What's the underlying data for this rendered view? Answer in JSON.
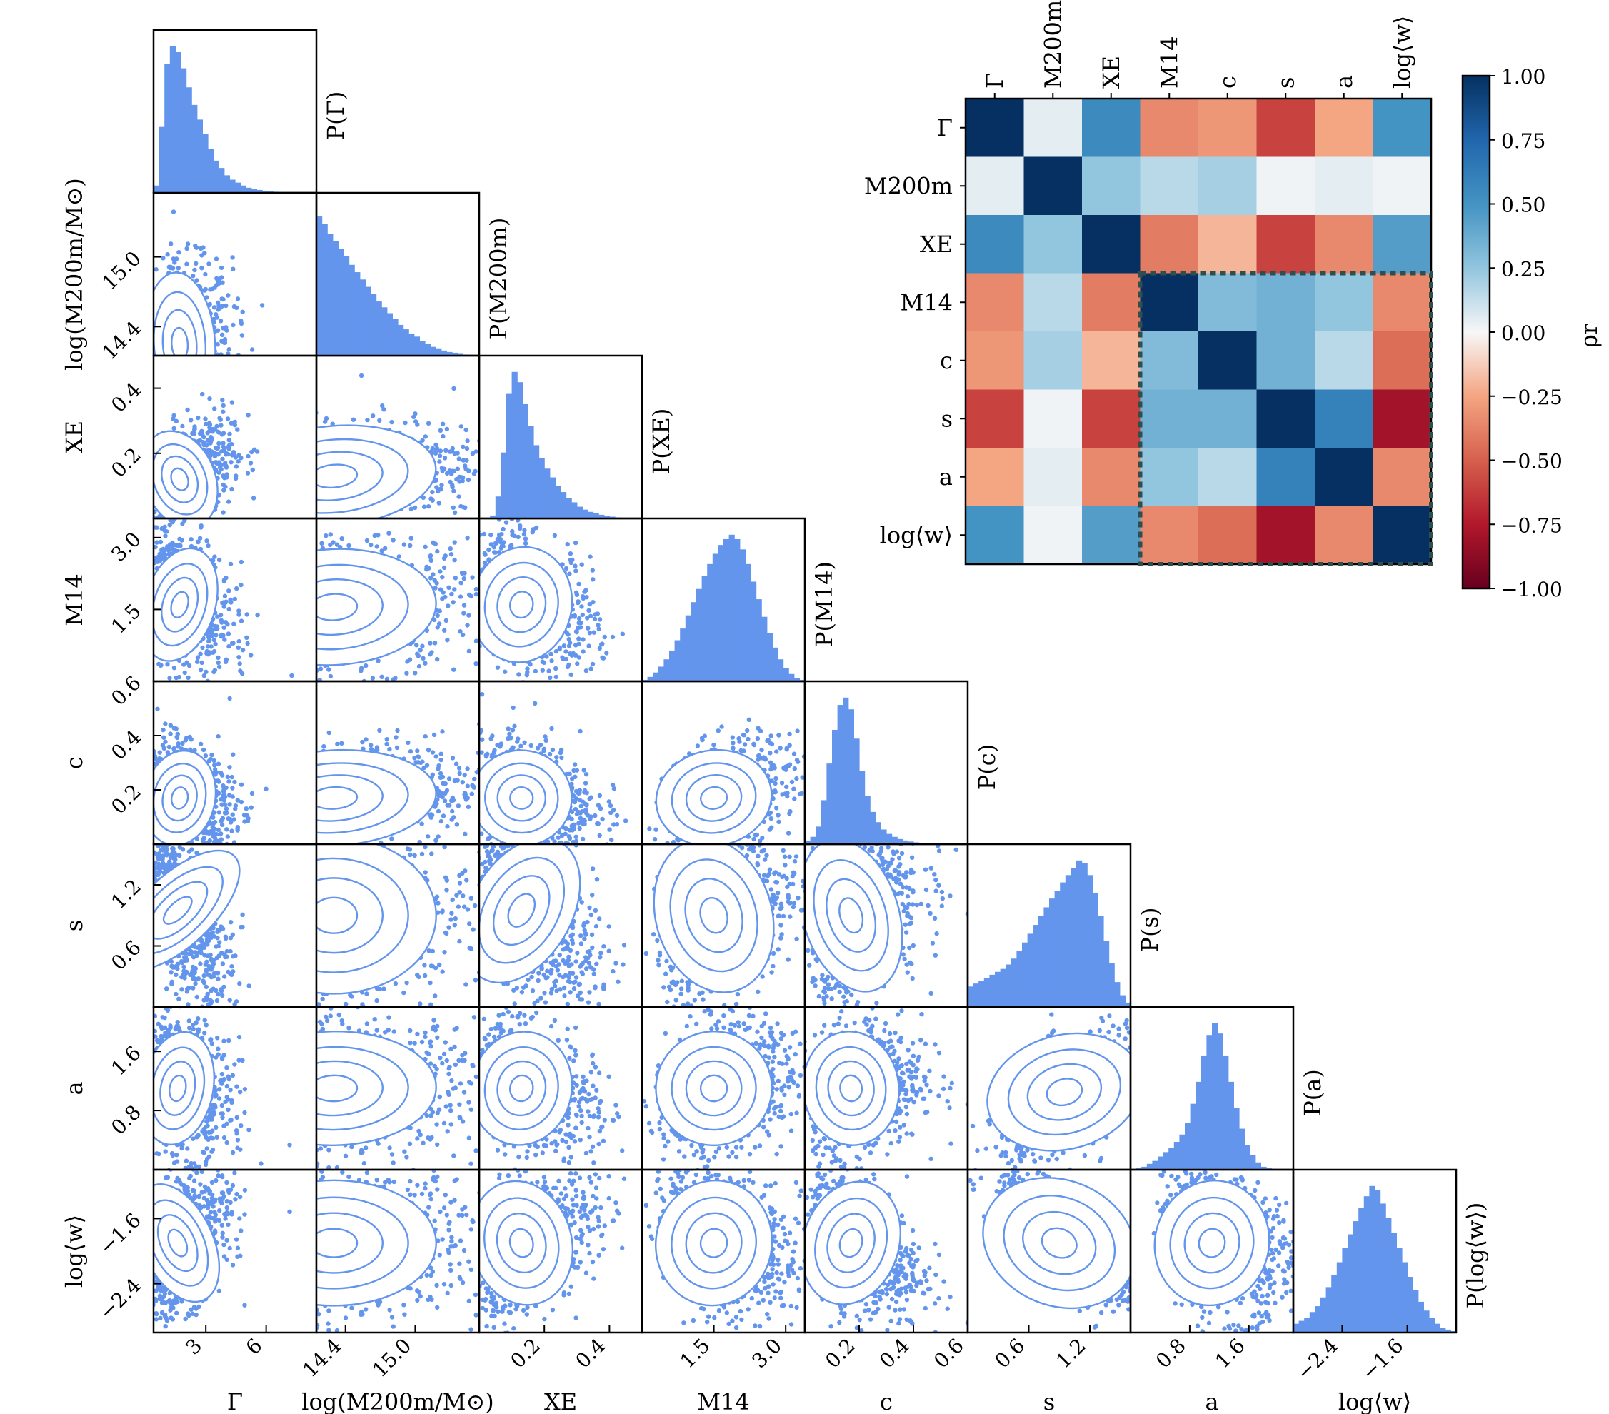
{
  "colors": {
    "points": "#6495ED",
    "contours": "#6495ED",
    "frame": "#000000",
    "highlight_box": "#2F4F4F"
  },
  "chart_data": [
    {
      "type": "corner",
      "params": [
        {
          "key": "Gamma",
          "label": "Γ",
          "range": [
            0.4,
            8.5
          ],
          "ticks": [
            {
              "v": 3,
              "t": "3"
            },
            {
              "v": 6,
              "t": "6"
            }
          ],
          "hist_label": "P(Γ)",
          "hist": [
            0.05,
            0.45,
            0.88,
            1.0,
            0.96,
            0.85,
            0.72,
            0.6,
            0.5,
            0.4,
            0.3,
            0.22,
            0.17,
            0.12,
            0.09,
            0.07,
            0.05,
            0.035,
            0.025,
            0.02,
            0.015,
            0.01,
            0.008,
            0.006,
            0.005,
            0.004,
            0.003,
            0.002,
            0.001,
            0.001
          ]
        },
        {
          "key": "M200m",
          "label": "log(M200m/M⊙)",
          "range": [
            14.15,
            15.55
          ],
          "ticks": [
            {
              "v": 14.4,
              "t": "14.4"
            },
            {
              "v": 15.0,
              "t": "15.0"
            }
          ],
          "hist_label": "P(M200m)",
          "hist": [
            0.95,
            0.9,
            0.83,
            0.78,
            0.73,
            0.68,
            0.62,
            0.57,
            0.52,
            0.47,
            0.42,
            0.37,
            0.33,
            0.29,
            0.25,
            0.21,
            0.18,
            0.15,
            0.13,
            0.1,
            0.08,
            0.06,
            0.05,
            0.035,
            0.025,
            0.02,
            0.012,
            0.008,
            0.005,
            0.002
          ]
        },
        {
          "key": "XE",
          "label": "XE",
          "range": [
            0.0,
            0.5
          ],
          "ticks": [
            {
              "v": 0.2,
              "t": "0.2"
            },
            {
              "v": 0.4,
              "t": "0.4"
            }
          ],
          "hist_label": "P(XE)",
          "hist": [
            0.0,
            0.0,
            0.02,
            0.15,
            0.45,
            0.85,
            1.0,
            0.93,
            0.78,
            0.63,
            0.5,
            0.41,
            0.34,
            0.28,
            0.22,
            0.18,
            0.14,
            0.11,
            0.08,
            0.06,
            0.045,
            0.035,
            0.025,
            0.018,
            0.012,
            0.008,
            0.005,
            0.003,
            0.001,
            0.0
          ]
        },
        {
          "key": "M14",
          "label": "M14",
          "range": [
            0.0,
            3.4
          ],
          "ticks": [
            {
              "v": 1.5,
              "t": "1.5"
            },
            {
              "v": 3.0,
              "t": "3.0"
            }
          ],
          "hist_label": "P(M14)",
          "hist": [
            0.01,
            0.03,
            0.06,
            0.1,
            0.15,
            0.21,
            0.28,
            0.36,
            0.45,
            0.54,
            0.63,
            0.72,
            0.8,
            0.87,
            0.93,
            0.97,
            1.0,
            0.97,
            0.9,
            0.8,
            0.68,
            0.56,
            0.44,
            0.33,
            0.23,
            0.15,
            0.09,
            0.05,
            0.02,
            0.01
          ]
        },
        {
          "key": "c",
          "label": "c",
          "range": [
            0.0,
            0.6
          ],
          "ticks": [
            {
              "v": 0.2,
              "t": "0.2"
            },
            {
              "v": 0.4,
              "t": "0.4"
            },
            {
              "v": 0.6,
              "t": "0.6"
            }
          ],
          "hist_label": "P(c)",
          "hist": [
            0.02,
            0.05,
            0.12,
            0.3,
            0.55,
            0.78,
            0.95,
            1.0,
            0.92,
            0.72,
            0.5,
            0.33,
            0.22,
            0.15,
            0.1,
            0.07,
            0.05,
            0.035,
            0.025,
            0.018,
            0.012,
            0.008,
            0.005,
            0.003,
            0.002,
            0.001,
            0.0,
            0.0,
            0.0,
            0.0
          ]
        },
        {
          "key": "s",
          "label": "s",
          "range": [
            0.0,
            1.6
          ],
          "ticks": [
            {
              "v": 0.6,
              "t": "0.6"
            },
            {
              "v": 1.2,
              "t": "1.2"
            }
          ],
          "hist_label": "P(s)",
          "hist": [
            0.14,
            0.16,
            0.18,
            0.2,
            0.22,
            0.24,
            0.26,
            0.29,
            0.33,
            0.38,
            0.44,
            0.5,
            0.56,
            0.62,
            0.68,
            0.74,
            0.79,
            0.85,
            0.9,
            0.95,
            1.0,
            0.98,
            0.9,
            0.78,
            0.62,
            0.45,
            0.3,
            0.17,
            0.08,
            0.03
          ]
        },
        {
          "key": "a",
          "label": "a",
          "range": [
            0.0,
            2.2
          ],
          "ticks": [
            {
              "v": 0.8,
              "t": "0.8"
            },
            {
              "v": 1.6,
              "t": "1.6"
            }
          ],
          "hist_label": "P(a)",
          "hist": [
            0.0,
            0.01,
            0.02,
            0.04,
            0.06,
            0.09,
            0.12,
            0.15,
            0.19,
            0.24,
            0.32,
            0.45,
            0.6,
            0.78,
            0.92,
            1.0,
            0.93,
            0.78,
            0.6,
            0.42,
            0.28,
            0.17,
            0.1,
            0.05,
            0.02,
            0.01,
            0.0,
            0.0,
            0.0,
            0.0
          ]
        },
        {
          "key": "w",
          "label": "log⟨w⟩",
          "range": [
            -3.0,
            -1.0
          ],
          "ticks": [
            {
              "v": -2.4,
              "t": "−2.4"
            },
            {
              "v": -1.6,
              "t": "−1.6"
            }
          ],
          "hist_label": "P(log⟨w⟩)",
          "hist": [
            0.06,
            0.08,
            0.1,
            0.14,
            0.18,
            0.24,
            0.31,
            0.39,
            0.48,
            0.58,
            0.67,
            0.76,
            0.85,
            0.93,
            1.0,
            0.97,
            0.88,
            0.78,
            0.68,
            0.58,
            0.48,
            0.38,
            0.29,
            0.21,
            0.15,
            0.1,
            0.06,
            0.03,
            0.02,
            0.01
          ]
        }
      ],
      "pairs": [
        {
          "x": 0,
          "y": 1,
          "mean": [
            1.7,
            14.25
          ],
          "sd": [
            0.8,
            0.28
          ],
          "rho": 0.05
        },
        {
          "x": 0,
          "y": 2,
          "mean": [
            1.7,
            0.12
          ],
          "sd": [
            0.8,
            0.07
          ],
          "rho": 0.45
        },
        {
          "x": 1,
          "y": 2,
          "mean": [
            14.3,
            0.13
          ],
          "sd": [
            0.4,
            0.07
          ],
          "rho": 0.3
        },
        {
          "x": 0,
          "y": 3,
          "mean": [
            1.7,
            1.6
          ],
          "sd": [
            0.8,
            0.55
          ],
          "rho": -0.3
        },
        {
          "x": 1,
          "y": 3,
          "mean": [
            14.3,
            1.55
          ],
          "sd": [
            0.4,
            0.55
          ],
          "rho": 0.15
        },
        {
          "x": 2,
          "y": 3,
          "mean": [
            0.13,
            1.6
          ],
          "sd": [
            0.07,
            0.55
          ],
          "rho": -0.3
        },
        {
          "x": 0,
          "y": 4,
          "mean": [
            1.7,
            0.17
          ],
          "sd": [
            0.8,
            0.08
          ],
          "rho": -0.25
        },
        {
          "x": 1,
          "y": 4,
          "mean": [
            14.3,
            0.17
          ],
          "sd": [
            0.4,
            0.08
          ],
          "rho": 0.2
        },
        {
          "x": 2,
          "y": 4,
          "mean": [
            0.13,
            0.17
          ],
          "sd": [
            0.07,
            0.08
          ],
          "rho": -0.15
        },
        {
          "x": 3,
          "y": 4,
          "mean": [
            1.5,
            0.17
          ],
          "sd": [
            0.55,
            0.08
          ],
          "rho": 0.35
        },
        {
          "x": 0,
          "y": 5,
          "mean": [
            1.6,
            0.95
          ],
          "sd": [
            0.8,
            0.35
          ],
          "rho": -0.6
        },
        {
          "x": 1,
          "y": 5,
          "mean": [
            14.3,
            0.9
          ],
          "sd": [
            0.4,
            0.35
          ],
          "rho": 0.0
        },
        {
          "x": 2,
          "y": 5,
          "mean": [
            0.13,
            0.95
          ],
          "sd": [
            0.07,
            0.35
          ],
          "rho": -0.55
        },
        {
          "x": 3,
          "y": 5,
          "mean": [
            1.5,
            0.9
          ],
          "sd": [
            0.55,
            0.35
          ],
          "rho": 0.35
        },
        {
          "x": 4,
          "y": 5,
          "mean": [
            0.17,
            0.9
          ],
          "sd": [
            0.08,
            0.35
          ],
          "rho": 0.3
        },
        {
          "x": 0,
          "y": 6,
          "mean": [
            1.6,
            1.1
          ],
          "sd": [
            0.8,
            0.35
          ],
          "rho": -0.2
        },
        {
          "x": 1,
          "y": 6,
          "mean": [
            14.3,
            1.1
          ],
          "sd": [
            0.4,
            0.35
          ],
          "rho": 0.05
        },
        {
          "x": 2,
          "y": 6,
          "mean": [
            0.13,
            1.1
          ],
          "sd": [
            0.07,
            0.35
          ],
          "rho": -0.3
        },
        {
          "x": 3,
          "y": 6,
          "mean": [
            1.5,
            1.1
          ],
          "sd": [
            0.55,
            0.35
          ],
          "rho": 0.25
        },
        {
          "x": 4,
          "y": 6,
          "mean": [
            0.17,
            1.1
          ],
          "sd": [
            0.08,
            0.35
          ],
          "rho": 0.15
        },
        {
          "x": 5,
          "y": 6,
          "mean": [
            0.95,
            1.05
          ],
          "sd": [
            0.35,
            0.35
          ],
          "rho": 0.6
        },
        {
          "x": 0,
          "y": 7,
          "mean": [
            1.6,
            -1.9
          ],
          "sd": [
            0.8,
            0.35
          ],
          "rho": 0.4
        },
        {
          "x": 1,
          "y": 7,
          "mean": [
            14.3,
            -1.9
          ],
          "sd": [
            0.4,
            0.35
          ],
          "rho": 0.0
        },
        {
          "x": 2,
          "y": 7,
          "mean": [
            0.13,
            -1.9
          ],
          "sd": [
            0.07,
            0.35
          ],
          "rho": 0.35
        },
        {
          "x": 3,
          "y": 7,
          "mean": [
            1.5,
            -1.9
          ],
          "sd": [
            0.55,
            0.35
          ],
          "rho": -0.3
        },
        {
          "x": 4,
          "y": 7,
          "mean": [
            0.17,
            -1.9
          ],
          "sd": [
            0.08,
            0.35
          ],
          "rho": -0.4
        },
        {
          "x": 5,
          "y": 7,
          "mean": [
            0.9,
            -1.9
          ],
          "sd": [
            0.35,
            0.35
          ],
          "rho": -0.8
        },
        {
          "x": 6,
          "y": 7,
          "mean": [
            1.1,
            -1.9
          ],
          "sd": [
            0.35,
            0.35
          ],
          "rho": -0.35
        }
      ]
    },
    {
      "type": "heatmap",
      "labels": [
        "Γ",
        "M200m",
        "XE",
        "M14",
        "c",
        "s",
        "a",
        "log⟨w⟩"
      ],
      "matrix": [
        [
          1.0,
          0.05,
          0.55,
          -0.35,
          -0.3,
          -0.6,
          -0.25,
          0.5
        ],
        [
          0.05,
          1.0,
          0.25,
          0.15,
          0.2,
          0.02,
          0.05,
          0.02
        ],
        [
          0.55,
          0.25,
          1.0,
          -0.4,
          -0.2,
          -0.6,
          -0.35,
          0.45
        ],
        [
          -0.35,
          0.15,
          -0.4,
          1.0,
          0.3,
          0.35,
          0.25,
          -0.35
        ],
        [
          -0.3,
          0.2,
          -0.2,
          0.3,
          1.0,
          0.35,
          0.15,
          -0.45
        ],
        [
          -0.6,
          0.02,
          -0.6,
          0.35,
          0.35,
          1.0,
          0.6,
          -0.8
        ],
        [
          -0.25,
          0.05,
          -0.35,
          0.25,
          0.15,
          0.6,
          1.0,
          -0.35
        ],
        [
          0.5,
          0.02,
          0.45,
          -0.35,
          -0.45,
          -0.8,
          -0.35,
          1.0
        ]
      ],
      "vmin": -1.0,
      "vmax": 1.0,
      "colorbar_ticks": [
        "1.00",
        "0.75",
        "0.50",
        "0.25",
        "0.00",
        "−0.25",
        "−0.50",
        "−0.75",
        "−1.00"
      ],
      "colorbar_label": "ρr",
      "highlight_block": {
        "from": 3,
        "to": 7
      }
    }
  ]
}
